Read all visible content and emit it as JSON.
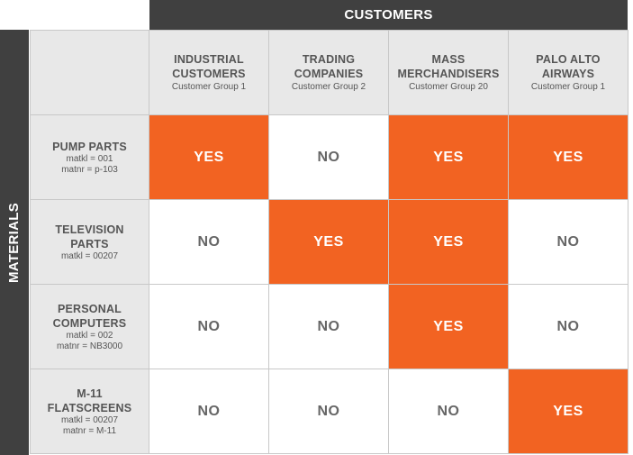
{
  "top_header": "CUSTOMERS",
  "side_header": "MATERIALS",
  "colors": {
    "yes": "#f26322",
    "band": "#404040",
    "header_bg": "#e8e8e8"
  },
  "columns": [
    {
      "name_lines": [
        "INDUSTRIAL",
        "CUSTOMERS"
      ],
      "group": "Customer Group 1"
    },
    {
      "name_lines": [
        "TRADING",
        "COMPANIES"
      ],
      "group": "Customer Group 2"
    },
    {
      "name_lines": [
        "MASS",
        "MERCHANDISERS"
      ],
      "group": "Customer Group 20"
    },
    {
      "name_lines": [
        "PALO ALTO",
        "AIRWAYS"
      ],
      "group": "Customer Group 1"
    }
  ],
  "rows": [
    {
      "name_lines": [
        "PUMP PARTS"
      ],
      "details": [
        "matkl = 001",
        "matnr = p-103"
      ],
      "cells": [
        "YES",
        "NO",
        "YES",
        "YES"
      ]
    },
    {
      "name_lines": [
        "TELEVISION",
        "PARTS"
      ],
      "details": [
        "matkl = 00207"
      ],
      "cells": [
        "NO",
        "YES",
        "YES",
        "NO"
      ]
    },
    {
      "name_lines": [
        "PERSONAL",
        "COMPUTERS"
      ],
      "details": [
        "matkl = 002",
        "matnr = NB3000"
      ],
      "cells": [
        "NO",
        "NO",
        "YES",
        "NO"
      ]
    },
    {
      "name_lines": [
        "M-11",
        "FLATSCREENS"
      ],
      "details": [
        "matkl = 00207",
        "matnr = M-11"
      ],
      "cells": [
        "NO",
        "NO",
        "NO",
        "YES"
      ]
    }
  ]
}
